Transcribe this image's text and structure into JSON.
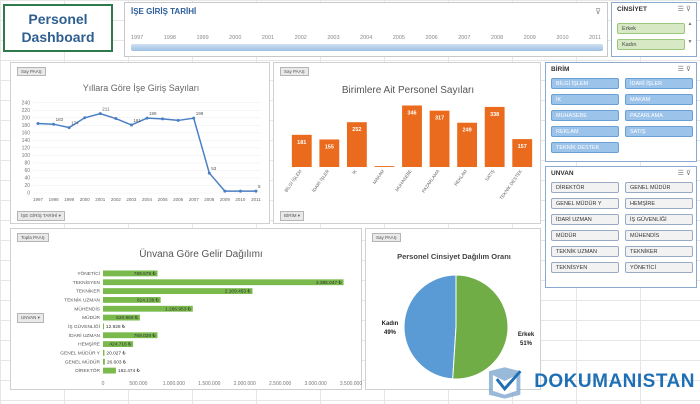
{
  "dashboard": {
    "title": "Personel Dashboard"
  },
  "timeline": {
    "header": "İŞE GİRİŞ TARİHİ",
    "years": [
      "1997",
      "1998",
      "1999",
      "2000",
      "2001",
      "2002",
      "2003",
      "2004",
      "2005",
      "2006",
      "2007",
      "2008",
      "2009",
      "2010",
      "2011"
    ]
  },
  "cinsiyet": {
    "header": "CİNSİYET",
    "items": [
      "Erkek",
      "Kadın"
    ]
  },
  "birim": {
    "header": "BİRİM",
    "items": [
      "BİLGİ İŞLEM",
      "İDARİ İŞLER",
      "İK",
      "MAKAM",
      "MUHASEBE",
      "PAZARLAMA",
      "REKLAM",
      "SATIŞ",
      "TEKNİK DESTEK"
    ]
  },
  "unvan": {
    "header": "UNVAN",
    "items": [
      "DİREKTÖR",
      "GENEL MÜDÜR",
      "GENEL MÜDÜR Y",
      "HEMŞİRE",
      "İDARİ UZMAN",
      "İŞ GÜVENLİĞİ",
      "MÜDÜR",
      "MÜHENDİS",
      "TEKNİK UZMAN",
      "TEKNİKER",
      "TEKNİSYEN",
      "YÖNETİCİ"
    ]
  },
  "charts": {
    "line": {
      "button": "Say PAAŞ",
      "filter": "İŞE GİRİŞ TARİHİ ▾"
    },
    "birim": {
      "button": "Say PAAŞ",
      "filter": "BİRİM ▾"
    },
    "gelir": {
      "button": "Topla PAAŞ",
      "filter": "UNVAN ▾"
    },
    "pie": {
      "button": "Say PAAŞ"
    }
  },
  "chart_data": [
    {
      "type": "line",
      "title": "Yıllara Göre İşe Giriş Sayıları",
      "categories": [
        "1997",
        "1998",
        "1999",
        "2000",
        "2001",
        "2002",
        "2003",
        "2004",
        "2005",
        "2006",
        "2007",
        "2008",
        "2009",
        "2010",
        "2011"
      ],
      "values": [
        185,
        183,
        174,
        200,
        211,
        198,
        181,
        199,
        197,
        193,
        199,
        53,
        5,
        5,
        5
      ],
      "labels": [
        "",
        "183",
        "174",
        "",
        "211",
        "",
        "181",
        "199",
        "",
        "",
        "199",
        "53",
        "",
        "",
        "5"
      ],
      "ylim": [
        0,
        250
      ],
      "yticks": [
        "0",
        "20",
        "40",
        "60",
        "80",
        "100",
        "120",
        "140",
        "160",
        "180",
        "200",
        "220",
        "240"
      ],
      "color": "#4a7fc4"
    },
    {
      "type": "bar",
      "title": "Birimlere Ait Personel Sayıları",
      "categories": [
        "BİLGİ İŞLEM",
        "İDARİ İŞLER",
        "İK",
        "MAKAM",
        "MUHASEBE",
        "PAZARLAMA",
        "REKLAM",
        "SATIŞ",
        "TEKNİK DESTEK"
      ],
      "values": [
        181,
        155,
        252,
        5,
        346,
        317,
        249,
        338,
        157
      ],
      "labels": [
        "181",
        "155",
        "252",
        "",
        "346",
        "317",
        "249",
        "338",
        "157"
      ],
      "color": "#ea6b1d"
    },
    {
      "type": "bar",
      "orientation": "horizontal",
      "title": "Ünvana Göre Gelir Dağılımı",
      "categories": [
        "YÖNETİCİ",
        "TEKNİSYEN",
        "TEKNİKER",
        "TEKNİK UZMAN",
        "MÜHENDİS",
        "MÜDÜR",
        "İŞ GÜVENLİĞİ",
        "İDARİ UZMAN",
        "HEMŞİRE",
        "GENEL MÜDÜR Y",
        "GENEL MÜDÜR",
        "DİREKTÖR"
      ],
      "values": [
        769578,
        3395047,
        2109453,
        814138,
        1266953,
        520969,
        12928,
        769029,
        424716,
        20027,
        26603,
        182474
      ],
      "labels": [
        "769.578 ₺",
        "3.395.047 ₺",
        "2.109.453 ₺",
        "814.138 ₺",
        "1.266.953 ₺",
        "520.969 ₺",
        "12.928 ₺",
        "769.029 ₺",
        "424.716 ₺",
        "20.027 ₺",
        "26.603 ₺",
        "182.474 ₺"
      ],
      "xticks": [
        "0",
        "500.000",
        "1.000.000",
        "1.500.000",
        "2.000.000",
        "2.500.000",
        "3.000.000",
        "3.500.000"
      ],
      "xlim": [
        0,
        3500000
      ],
      "color": "#7aba4d"
    },
    {
      "type": "pie",
      "title": "Personel Cinsiyet Dağılım Oranı",
      "slices": [
        {
          "name": "Kadın",
          "value": 49,
          "label": "49%",
          "color": "#5b9bd5"
        },
        {
          "name": "Erkek",
          "value": 51,
          "label": "51%",
          "color": "#70ad47"
        }
      ]
    }
  ]
}
